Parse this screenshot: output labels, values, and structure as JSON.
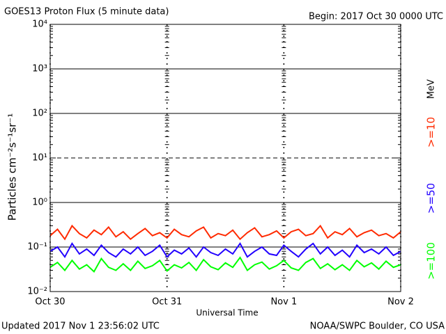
{
  "chart_data": {
    "type": "line",
    "title": "GOES13 Proton Flux (5 minute data)",
    "subtitle": "Begin: 2017 Oct 30 0000 UTC",
    "xlabel": "Universal Time",
    "ylabel": "Particles cm⁻²s⁻¹sr⁻¹",
    "unit_label": "MeV",
    "footer_left": "Updated 2017 Nov  1 23:56:02 UTC",
    "footer_right": "NOAA/SWPC Boulder, CO USA",
    "log_y": true,
    "ylim": [
      0.01,
      10000
    ],
    "yticks": [
      {
        "value": 0.01,
        "label": "10⁻²"
      },
      {
        "value": 0.1,
        "label": "10⁻¹"
      },
      {
        "value": 1,
        "label": "10⁰"
      },
      {
        "value": 10,
        "label": "10¹"
      },
      {
        "value": 100,
        "label": "10²"
      },
      {
        "value": 1000,
        "label": "10³"
      },
      {
        "value": 10000,
        "label": "10⁴"
      }
    ],
    "grid_lines": [
      0.1,
      1,
      10,
      100,
      1000
    ],
    "dashed_grid": [
      10
    ],
    "xlim": [
      0,
      72
    ],
    "xticks": [
      {
        "value": 0,
        "label": "Oct 30"
      },
      {
        "value": 24,
        "label": "Oct 31"
      },
      {
        "value": 48,
        "label": "Nov 1"
      },
      {
        "value": 72,
        "label": "Nov 2"
      }
    ],
    "x": [
      0,
      1.5,
      3,
      4.5,
      6,
      7.5,
      9,
      10.5,
      12,
      13.5,
      15,
      16.5,
      18,
      19.5,
      21,
      22.5,
      24,
      25.5,
      27,
      28.5,
      30,
      31.5,
      33,
      34.5,
      36,
      37.5,
      39,
      40.5,
      42,
      43.5,
      45,
      46.5,
      48,
      49.5,
      51,
      52.5,
      54,
      55.5,
      57,
      58.5,
      60,
      61.5,
      63,
      64.5,
      66,
      67.5,
      69,
      70.5,
      72
    ],
    "series": [
      {
        "name": ">=10",
        "color": "#ff2a00",
        "values": [
          0.18,
          0.25,
          0.15,
          0.3,
          0.2,
          0.16,
          0.24,
          0.19,
          0.28,
          0.17,
          0.22,
          0.15,
          0.2,
          0.26,
          0.18,
          0.21,
          0.16,
          0.25,
          0.19,
          0.17,
          0.23,
          0.28,
          0.16,
          0.2,
          0.18,
          0.24,
          0.15,
          0.21,
          0.27,
          0.17,
          0.19,
          0.23,
          0.16,
          0.22,
          0.25,
          0.18,
          0.2,
          0.3,
          0.16,
          0.22,
          0.19,
          0.26,
          0.17,
          0.21,
          0.24,
          0.18,
          0.2,
          0.16,
          0.22
        ]
      },
      {
        "name": ">=50",
        "color": "#2200ff",
        "values": [
          0.08,
          0.1,
          0.06,
          0.12,
          0.07,
          0.09,
          0.065,
          0.11,
          0.075,
          0.06,
          0.09,
          0.07,
          0.1,
          0.065,
          0.08,
          0.11,
          0.06,
          0.085,
          0.07,
          0.095,
          0.06,
          0.1,
          0.075,
          0.065,
          0.09,
          0.07,
          0.12,
          0.06,
          0.08,
          0.1,
          0.07,
          0.065,
          0.11,
          0.08,
          0.06,
          0.09,
          0.12,
          0.07,
          0.1,
          0.065,
          0.085,
          0.06,
          0.11,
          0.075,
          0.09,
          0.07,
          0.1,
          0.065,
          0.08
        ]
      },
      {
        "name": ">=100",
        "color": "#00ff00",
        "values": [
          0.035,
          0.045,
          0.03,
          0.05,
          0.032,
          0.04,
          0.028,
          0.055,
          0.035,
          0.03,
          0.042,
          0.03,
          0.048,
          0.033,
          0.038,
          0.05,
          0.029,
          0.04,
          0.034,
          0.045,
          0.03,
          0.052,
          0.036,
          0.031,
          0.044,
          0.035,
          0.058,
          0.03,
          0.04,
          0.046,
          0.032,
          0.038,
          0.05,
          0.034,
          0.03,
          0.045,
          0.055,
          0.033,
          0.042,
          0.031,
          0.04,
          0.03,
          0.05,
          0.036,
          0.044,
          0.032,
          0.048,
          0.035,
          0.04
        ]
      }
    ]
  }
}
